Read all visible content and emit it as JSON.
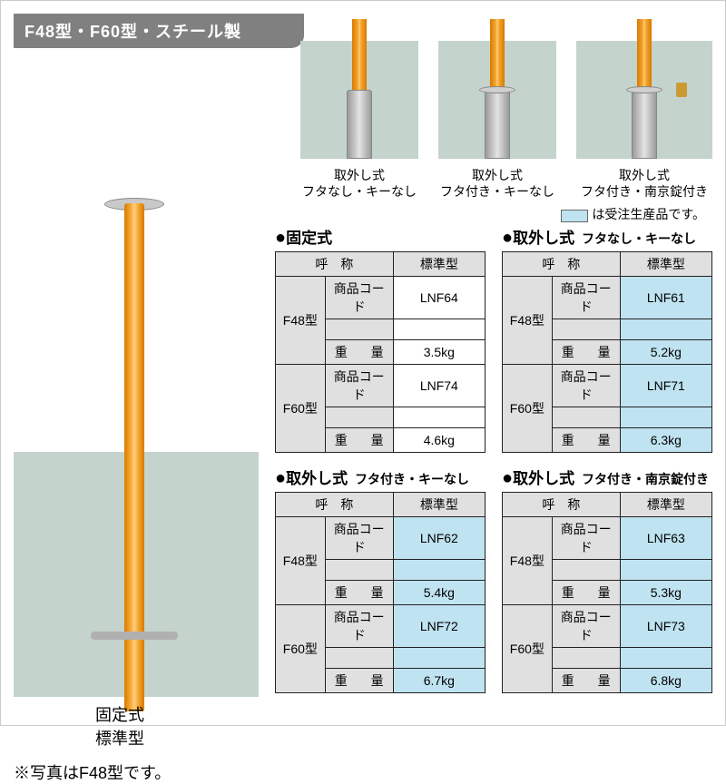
{
  "header": "F48型・F60型・スチール製",
  "thumbs": [
    {
      "line1": "取外し式",
      "line2": "フタなし・キーなし"
    },
    {
      "line1": "取外し式",
      "line2": "フタ付き・キーなし"
    },
    {
      "line1": "取外し式",
      "line2": "フタ付き・南京錠付き"
    }
  ],
  "legend": "は受注生産品です。",
  "mainCaption1": "固定式",
  "mainCaption2": "標準型",
  "mainNote": "※写真はF48型です。",
  "colors": {
    "highlight": "#bfe3f0",
    "headerGrey": "#e0e0e0",
    "bgPanel": "#c4d4cc"
  },
  "labels": {
    "name": "呼　称",
    "std": "標準型",
    "code": "商品コード",
    "weight": "重　量"
  },
  "tables": [
    {
      "title": "固定式",
      "sub": "",
      "highlight": false,
      "rows": [
        {
          "model": "F48型",
          "code": "LNF64",
          "weight": "3.5kg"
        },
        {
          "model": "F60型",
          "code": "LNF74",
          "weight": "4.6kg"
        }
      ]
    },
    {
      "title": "取外し式",
      "sub": "フタなし・キーなし",
      "highlight": true,
      "rows": [
        {
          "model": "F48型",
          "code": "LNF61",
          "weight": "5.2kg"
        },
        {
          "model": "F60型",
          "code": "LNF71",
          "weight": "6.3kg"
        }
      ]
    },
    {
      "title": "取外し式",
      "sub": "フタ付き・キーなし",
      "highlight": true,
      "rows": [
        {
          "model": "F48型",
          "code": "LNF62",
          "weight": "5.4kg"
        },
        {
          "model": "F60型",
          "code": "LNF72",
          "weight": "6.7kg"
        }
      ]
    },
    {
      "title": "取外し式",
      "sub": "フタ付き・南京錠付き",
      "highlight": true,
      "rows": [
        {
          "model": "F48型",
          "code": "LNF63",
          "weight": "5.3kg"
        },
        {
          "model": "F60型",
          "code": "LNF73",
          "weight": "6.8kg"
        }
      ]
    }
  ]
}
